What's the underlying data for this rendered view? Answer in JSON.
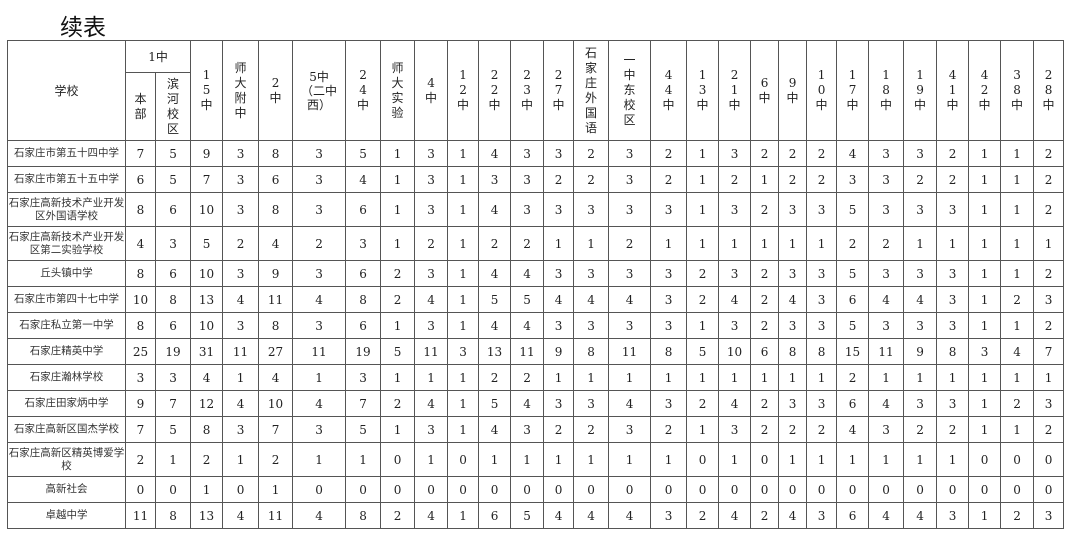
{
  "title": "续表",
  "header": {
    "school": "学校",
    "group_1zhong": "1中",
    "sub_columns": [
      "本部",
      "滨河校区"
    ],
    "columns": [
      "15中",
      "师大附中",
      "2中",
      "5中（二中西）",
      "24中",
      "师大实验",
      "4中",
      "12中",
      "22中",
      "23中",
      "27中",
      "石家庄外国语",
      "一中东校区",
      "44中",
      "13中",
      "21中",
      "6中",
      "9中",
      "10中",
      "17中",
      "18中",
      "19中",
      "41中",
      "42中",
      "38中",
      "28中"
    ]
  },
  "rows": [
    {
      "school": "石家庄市第五十四中学",
      "values": [
        7,
        5,
        9,
        3,
        8,
        3,
        5,
        1,
        3,
        1,
        4,
        3,
        3,
        2,
        3,
        2,
        1,
        3,
        2,
        2,
        2,
        4,
        3,
        3,
        2,
        1,
        1,
        2
      ]
    },
    {
      "school": "石家庄市第五十五中学",
      "values": [
        6,
        5,
        7,
        3,
        6,
        3,
        4,
        1,
        3,
        1,
        3,
        3,
        2,
        2,
        3,
        2,
        1,
        2,
        1,
        2,
        2,
        3,
        3,
        2,
        2,
        1,
        1,
        2
      ]
    },
    {
      "school": "石家庄高新技术产业开发区外国语学校",
      "values": [
        8,
        6,
        10,
        3,
        8,
        3,
        6,
        1,
        3,
        1,
        4,
        3,
        3,
        3,
        3,
        3,
        1,
        3,
        2,
        3,
        3,
        5,
        3,
        3,
        3,
        1,
        1,
        2
      ]
    },
    {
      "school": "石家庄高新技术产业开发区第二实验学校",
      "values": [
        4,
        3,
        5,
        2,
        4,
        2,
        3,
        1,
        2,
        1,
        2,
        2,
        1,
        1,
        2,
        1,
        1,
        1,
        1,
        1,
        1,
        2,
        2,
        1,
        1,
        1,
        1,
        1
      ]
    },
    {
      "school": "丘头镇中学",
      "values": [
        8,
        6,
        10,
        3,
        9,
        3,
        6,
        2,
        3,
        1,
        4,
        4,
        3,
        3,
        3,
        3,
        2,
        3,
        2,
        3,
        3,
        5,
        3,
        3,
        3,
        1,
        1,
        2
      ]
    },
    {
      "school": "石家庄市第四十七中学",
      "values": [
        10,
        8,
        13,
        4,
        11,
        4,
        8,
        2,
        4,
        1,
        5,
        5,
        4,
        4,
        4,
        3,
        2,
        4,
        2,
        4,
        3,
        6,
        4,
        4,
        3,
        1,
        2,
        3
      ]
    },
    {
      "school": "石家庄私立第一中学",
      "values": [
        8,
        6,
        10,
        3,
        8,
        3,
        6,
        1,
        3,
        1,
        4,
        4,
        3,
        3,
        3,
        3,
        1,
        3,
        2,
        3,
        3,
        5,
        3,
        3,
        3,
        1,
        1,
        2
      ]
    },
    {
      "school": "石家庄精英中学",
      "values": [
        25,
        19,
        31,
        11,
        27,
        11,
        19,
        5,
        11,
        3,
        13,
        11,
        9,
        8,
        11,
        8,
        5,
        10,
        6,
        8,
        8,
        15,
        11,
        9,
        8,
        3,
        4,
        7
      ]
    },
    {
      "school": "石家庄瀚林学校",
      "values": [
        3,
        3,
        4,
        1,
        4,
        1,
        3,
        1,
        1,
        1,
        2,
        2,
        1,
        1,
        1,
        1,
        1,
        1,
        1,
        1,
        1,
        2,
        1,
        1,
        1,
        1,
        1,
        1
      ]
    },
    {
      "school": "石家庄田家炳中学",
      "values": [
        9,
        7,
        12,
        4,
        10,
        4,
        7,
        2,
        4,
        1,
        5,
        4,
        3,
        3,
        4,
        3,
        2,
        4,
        2,
        3,
        3,
        6,
        4,
        3,
        3,
        1,
        2,
        3
      ]
    },
    {
      "school": "石家庄高新区国杰学校",
      "values": [
        7,
        5,
        8,
        3,
        7,
        3,
        5,
        1,
        3,
        1,
        4,
        3,
        2,
        2,
        3,
        2,
        1,
        3,
        2,
        2,
        2,
        4,
        3,
        2,
        2,
        1,
        1,
        2
      ]
    },
    {
      "school": "石家庄高新区精英博爱学校",
      "values": [
        2,
        1,
        2,
        1,
        2,
        1,
        1,
        0,
        1,
        0,
        1,
        1,
        1,
        1,
        1,
        1,
        0,
        1,
        0,
        1,
        1,
        1,
        1,
        1,
        1,
        0,
        0,
        0
      ]
    },
    {
      "school": "高新社会",
      "values": [
        0,
        0,
        1,
        0,
        1,
        0,
        0,
        0,
        0,
        0,
        0,
        0,
        0,
        0,
        0,
        0,
        0,
        0,
        0,
        0,
        0,
        0,
        0,
        0,
        0,
        0,
        0,
        0
      ]
    },
    {
      "school": "卓越中学",
      "values": [
        11,
        8,
        13,
        4,
        11,
        4,
        8,
        2,
        4,
        1,
        6,
        5,
        4,
        4,
        4,
        3,
        2,
        4,
        2,
        4,
        3,
        6,
        4,
        4,
        3,
        1,
        2,
        3
      ]
    }
  ]
}
